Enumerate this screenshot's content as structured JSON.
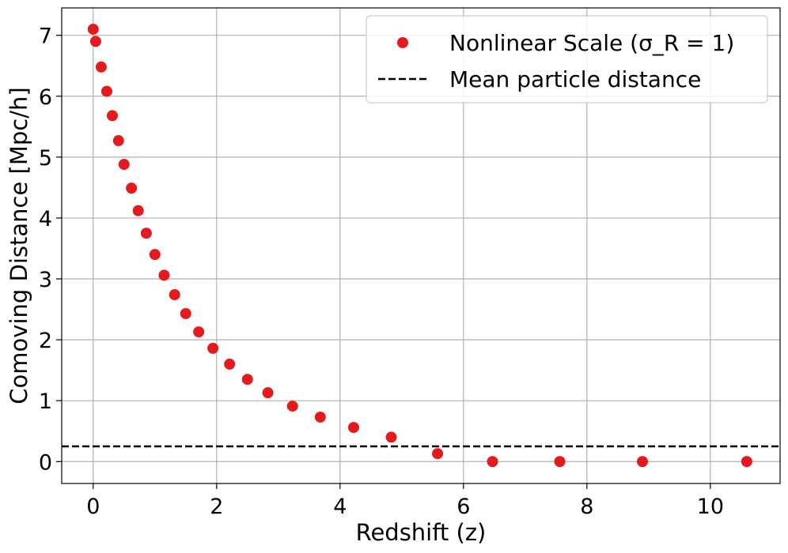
{
  "chart_data": {
    "type": "scatter",
    "xlabel": "Redshift (z)",
    "ylabel": "Comoving Distance [Mpc/h]",
    "xlim": [
      -0.51,
      11.13
    ],
    "ylim": [
      -0.36,
      7.45
    ],
    "xticks": [
      0,
      2,
      4,
      6,
      8,
      10
    ],
    "yticks": [
      0,
      1,
      2,
      3,
      4,
      5,
      6,
      7
    ],
    "grid": true,
    "legend_position": "top-right",
    "series": [
      {
        "name": "Nonlinear Scale (σ_R = 1)",
        "color": "#e41a1c",
        "x": [
          0,
          0.04,
          0.13,
          0.22,
          0.31,
          0.41,
          0.5,
          0.62,
          0.73,
          0.86,
          1.0,
          1.15,
          1.32,
          1.5,
          1.71,
          1.94,
          2.21,
          2.5,
          2.83,
          3.23,
          3.68,
          4.22,
          4.83,
          5.58,
          6.47,
          7.56,
          8.9,
          10.59
        ],
        "y": [
          7.1,
          6.9,
          6.48,
          6.08,
          5.68,
          5.27,
          4.88,
          4.49,
          4.12,
          3.75,
          3.4,
          3.06,
          2.74,
          2.43,
          2.13,
          1.86,
          1.6,
          1.35,
          1.13,
          0.91,
          0.73,
          0.56,
          0.4,
          0.13,
          0,
          0,
          0,
          0
        ]
      }
    ],
    "hlines": [
      {
        "name": "Mean particle distance",
        "y": 0.25,
        "color": "#000000",
        "style": "dashed"
      }
    ]
  }
}
